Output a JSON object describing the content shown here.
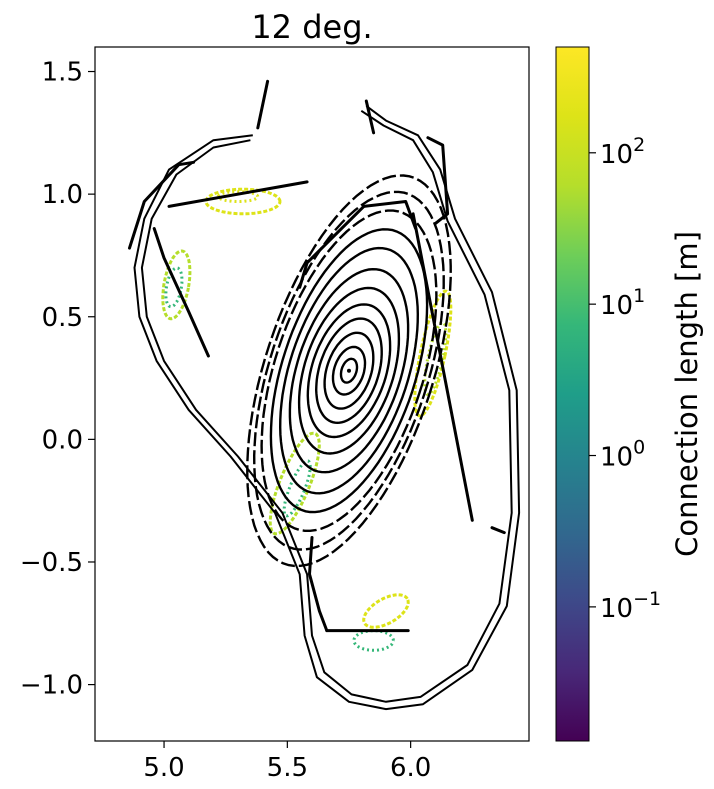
{
  "chart_data": {
    "type": "scatter",
    "title": "12 deg.",
    "xlabel": "",
    "ylabel": "",
    "xlim": [
      4.72,
      6.48
    ],
    "ylim": [
      -1.23,
      1.6
    ],
    "xticks": [
      5.0,
      5.5,
      6.0
    ],
    "xtick_labels": [
      "5.0",
      "5.5",
      "6.0"
    ],
    "yticks": [
      1.5,
      1.0,
      0.5,
      0.0,
      -0.5,
      -1.0
    ],
    "ytick_labels": [
      "1.5",
      "1.0",
      "0.5",
      "0.0",
      "−0.5",
      "−1.0"
    ],
    "grid": false,
    "colorbar": {
      "label": "Connection length [m]",
      "scale": "log",
      "range": [
        0.013,
        500
      ],
      "colormap": "viridis",
      "ticks": [
        {
          "value": 100,
          "base": "10",
          "exp": "2"
        },
        {
          "value": 10,
          "base": "10",
          "exp": "1"
        },
        {
          "value": 1,
          "base": "10",
          "exp": "0"
        },
        {
          "value": 0.1,
          "base": "10",
          "exp": "−1"
        }
      ]
    },
    "wall_outer": [
      [
        5.36,
        1.24
      ],
      [
        5.2,
        1.22
      ],
      [
        5.02,
        1.1
      ],
      [
        4.92,
        0.9
      ],
      [
        4.88,
        0.7
      ],
      [
        4.9,
        0.5
      ],
      [
        4.97,
        0.32
      ],
      [
        5.1,
        0.12
      ],
      [
        5.27,
        -0.07
      ],
      [
        5.45,
        -0.3
      ],
      [
        5.55,
        -0.55
      ],
      [
        5.57,
        -0.8
      ],
      [
        5.62,
        -0.97
      ],
      [
        5.75,
        -1.07
      ],
      [
        5.9,
        -1.1
      ],
      [
        6.05,
        -1.08
      ],
      [
        6.25,
        -0.94
      ],
      [
        6.39,
        -0.68
      ],
      [
        6.44,
        -0.3
      ],
      [
        6.43,
        0.2
      ],
      [
        6.33,
        0.6
      ],
      [
        6.18,
        0.9
      ],
      [
        6.12,
        1.1
      ],
      [
        6.03,
        1.24
      ],
      [
        5.9,
        1.3
      ],
      [
        5.82,
        1.36
      ]
    ],
    "wall_inner": [
      [
        5.35,
        1.22
      ],
      [
        5.2,
        1.19
      ],
      [
        5.05,
        1.08
      ],
      [
        4.95,
        0.9
      ],
      [
        4.91,
        0.7
      ],
      [
        4.93,
        0.5
      ],
      [
        5.0,
        0.32
      ],
      [
        5.13,
        0.12
      ],
      [
        5.3,
        -0.07
      ],
      [
        5.48,
        -0.3
      ],
      [
        5.58,
        -0.55
      ],
      [
        5.6,
        -0.8
      ],
      [
        5.65,
        -0.95
      ],
      [
        5.76,
        -1.04
      ],
      [
        5.9,
        -1.07
      ],
      [
        6.04,
        -1.05
      ],
      [
        6.23,
        -0.92
      ],
      [
        6.36,
        -0.67
      ],
      [
        6.41,
        -0.3
      ],
      [
        6.4,
        0.2
      ],
      [
        6.3,
        0.59
      ],
      [
        6.15,
        0.89
      ],
      [
        6.09,
        1.09
      ],
      [
        6.01,
        1.22
      ],
      [
        5.89,
        1.28
      ],
      [
        5.8,
        1.34
      ]
    ],
    "divertor_segments": [
      [
        [
          4.86,
          0.78
        ],
        [
          4.92,
          0.97
        ],
        [
          5.06,
          1.12
        ],
        [
          5.12,
          1.13
        ]
      ],
      [
        [
          5.02,
          0.95
        ],
        [
          5.58,
          1.05
        ]
      ],
      [
        [
          4.96,
          0.86
        ],
        [
          5.0,
          0.74
        ],
        [
          5.1,
          0.52
        ],
        [
          5.18,
          0.34
        ]
      ],
      [
        [
          5.38,
          1.27
        ],
        [
          5.42,
          1.46
        ]
      ],
      [
        [
          5.85,
          1.25
        ],
        [
          5.82,
          1.38
        ]
      ],
      [
        [
          5.81,
          0.95
        ],
        [
          5.68,
          0.82
        ],
        [
          5.58,
          0.72
        ],
        [
          5.55,
          0.62
        ]
      ],
      [
        [
          5.81,
          0.95
        ],
        [
          5.98,
          0.97
        ],
        [
          6.02,
          0.86
        ]
      ],
      [
        [
          6.07,
          1.23
        ],
        [
          6.13,
          1.2
        ],
        [
          6.15,
          0.92
        ],
        [
          6.1,
          0.88
        ]
      ],
      [
        [
          6.01,
          0.92
        ],
        [
          6.25,
          -0.33
        ]
      ],
      [
        [
          6.33,
          -0.36
        ],
        [
          6.38,
          -0.38
        ]
      ],
      [
        [
          5.66,
          -0.78
        ],
        [
          5.99,
          -0.78
        ]
      ],
      [
        [
          5.6,
          -0.4
        ],
        [
          5.59,
          -0.55
        ],
        [
          5.63,
          -0.7
        ],
        [
          5.66,
          -0.78
        ]
      ]
    ],
    "flux_surface_center": [
      5.75,
      0.28
    ],
    "flux_surfaces": [
      {
        "a": 0.03,
        "b": 0.05,
        "tilt": 18
      },
      {
        "a": 0.06,
        "b": 0.1,
        "tilt": 18
      },
      {
        "a": 0.09,
        "b": 0.16,
        "tilt": 18
      },
      {
        "a": 0.12,
        "b": 0.22,
        "tilt": 18
      },
      {
        "a": 0.15,
        "b": 0.28,
        "tilt": 18
      },
      {
        "a": 0.18,
        "b": 0.35,
        "tilt": 18
      },
      {
        "a": 0.21,
        "b": 0.43,
        "tilt": 18
      },
      {
        "a": 0.24,
        "b": 0.52,
        "tilt": 18
      },
      {
        "a": 0.27,
        "b": 0.6,
        "tilt": 18
      },
      {
        "a": 0.3,
        "b": 0.68,
        "tilt": 18
      },
      {
        "a": 0.32,
        "b": 0.76,
        "tilt": 18
      },
      {
        "a": 0.34,
        "b": 0.83,
        "tilt": 18
      }
    ],
    "islands": [
      {
        "x": 5.05,
        "y": 0.63,
        "a": 0.05,
        "b": 0.14,
        "tilt": 10,
        "lc": 80
      },
      {
        "x": 5.04,
        "y": 0.62,
        "a": 0.03,
        "b": 0.08,
        "tilt": 10,
        "lc": 5
      },
      {
        "x": 5.32,
        "y": 0.97,
        "a": 0.15,
        "b": 0.05,
        "tilt": 0,
        "lc": 150
      },
      {
        "x": 5.3,
        "y": 0.99,
        "a": 0.08,
        "b": 0.02,
        "tilt": 0,
        "lc": 200
      },
      {
        "x": 6.09,
        "y": 0.35,
        "a": 0.05,
        "b": 0.26,
        "tilt": 12,
        "lc": 150
      },
      {
        "x": 6.1,
        "y": 0.33,
        "a": 0.03,
        "b": 0.15,
        "tilt": 12,
        "lc": 60
      },
      {
        "x": 5.53,
        "y": -0.18,
        "a": 0.06,
        "b": 0.22,
        "tilt": 22,
        "lc": 40
      },
      {
        "x": 5.54,
        "y": -0.2,
        "a": 0.03,
        "b": 0.12,
        "tilt": 22,
        "lc": 5
      },
      {
        "x": 5.9,
        "y": -0.7,
        "a": 0.1,
        "b": 0.05,
        "tilt": -30,
        "lc": 200
      },
      {
        "x": 5.85,
        "y": -0.82,
        "a": 0.08,
        "b": 0.04,
        "tilt": 0,
        "lc": 6
      }
    ]
  }
}
